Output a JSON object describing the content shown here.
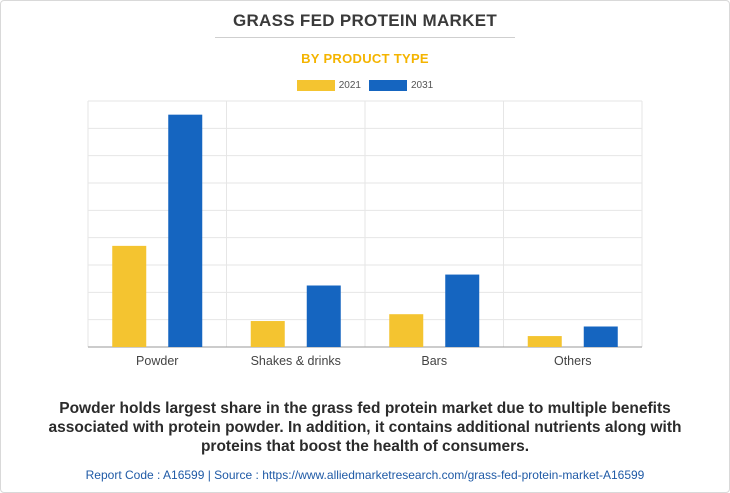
{
  "title": "GRASS FED PROTEIN MARKET",
  "subtitle": "BY PRODUCT TYPE",
  "legend": [
    {
      "label": "2021",
      "color": "#f4c430"
    },
    {
      "label": "2031",
      "color": "#1565c0"
    }
  ],
  "caption": "Powder holds largest share in the grass fed protein market due to multiple benefits associated with protein powder. In addition, it contains additional nutrients along with proteins that boost the health of consumers.",
  "footer": "Report Code : A16599  |  Source : https://www.alliedmarketresearch.com/grass-fed-protein-market-A16599",
  "chart_data": {
    "type": "bar",
    "categories": [
      "Powder",
      "Shakes & drinks",
      "Bars",
      "Others"
    ],
    "series": [
      {
        "name": "2021",
        "values": [
          37,
          9.5,
          12,
          4
        ],
        "color": "#f4c430"
      },
      {
        "name": "2031",
        "values": [
          85,
          22.5,
          26.5,
          7.5
        ],
        "color": "#1565c0"
      }
    ],
    "ylim": [
      0,
      90
    ],
    "grid": true,
    "legend_position": "top-center",
    "xlabel": "",
    "ylabel": ""
  }
}
